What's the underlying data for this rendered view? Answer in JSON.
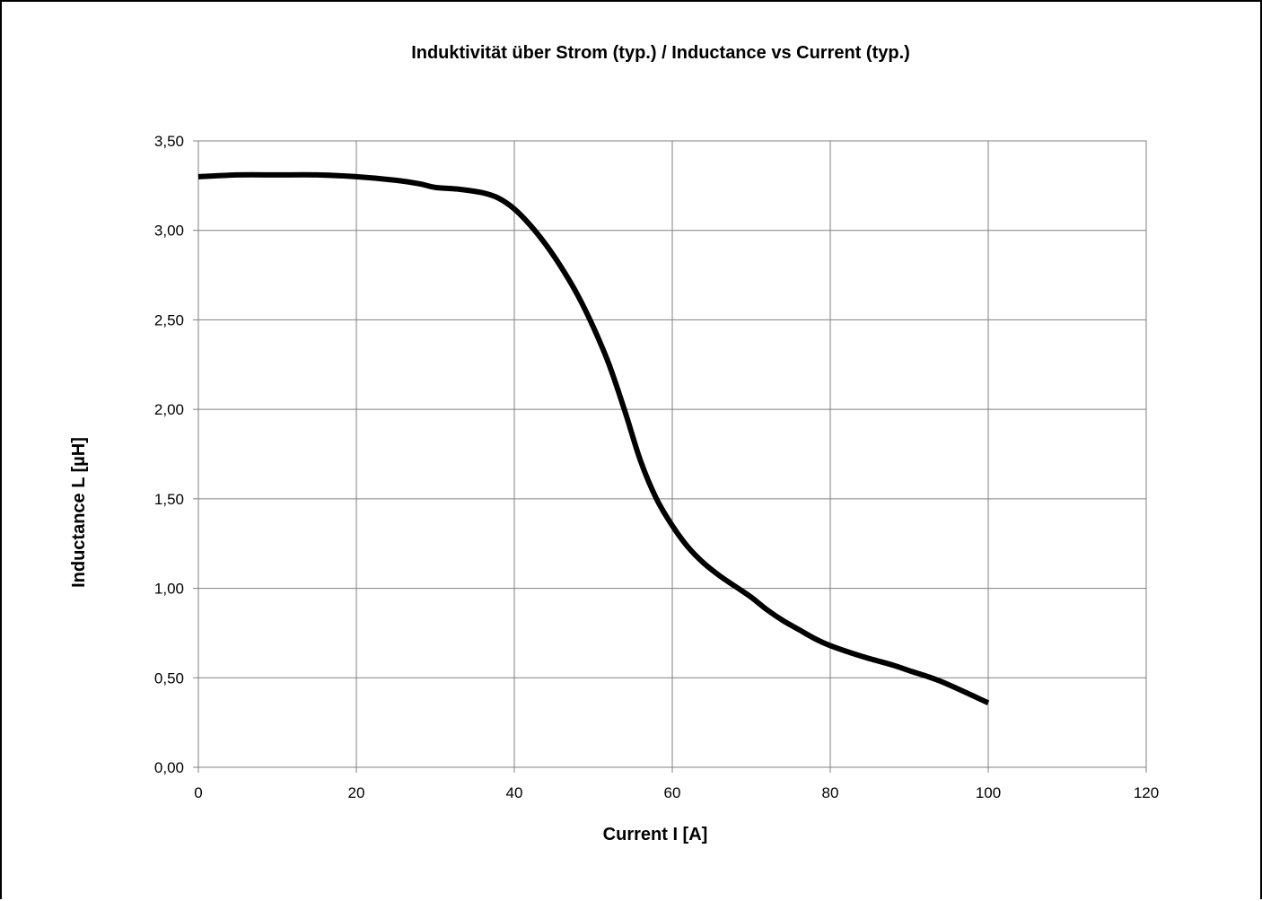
{
  "chart_data": {
    "type": "line",
    "title": "Induktivität über Strom (typ.) / Inductance vs Current (typ.)",
    "xlabel": "Current I [A]",
    "ylabel": "Inductance L [µH]",
    "xlim": [
      0,
      120
    ],
    "ylim": [
      0,
      3.5
    ],
    "x_ticks": [
      0,
      20,
      40,
      60,
      80,
      100,
      120
    ],
    "x_tick_labels": [
      "0",
      "20",
      "40",
      "60",
      "80",
      "100",
      "120"
    ],
    "y_ticks": [
      0,
      0.5,
      1.0,
      1.5,
      2.0,
      2.5,
      3.0,
      3.5
    ],
    "y_tick_labels": [
      "0,00",
      "0,50",
      "1,00",
      "1,50",
      "2,00",
      "2,50",
      "3,00",
      "3,50"
    ],
    "grid": true,
    "legend": "none",
    "line_color": "#000000",
    "series": [
      {
        "x": [
          0,
          5,
          10,
          15,
          20,
          25,
          28,
          30,
          33,
          36,
          38,
          40,
          42,
          44,
          46,
          48,
          50,
          52,
          54,
          56,
          58,
          60,
          62,
          64,
          66,
          68,
          70,
          72,
          74,
          76,
          78,
          80,
          84,
          88,
          90,
          94,
          100
        ],
        "y": [
          3.3,
          3.31,
          3.31,
          3.31,
          3.3,
          3.28,
          3.26,
          3.24,
          3.23,
          3.21,
          3.18,
          3.12,
          3.03,
          2.92,
          2.79,
          2.64,
          2.46,
          2.25,
          1.99,
          1.71,
          1.5,
          1.35,
          1.23,
          1.14,
          1.07,
          1.01,
          0.95,
          0.88,
          0.82,
          0.77,
          0.72,
          0.68,
          0.62,
          0.57,
          0.54,
          0.48,
          0.36
        ]
      }
    ]
  }
}
